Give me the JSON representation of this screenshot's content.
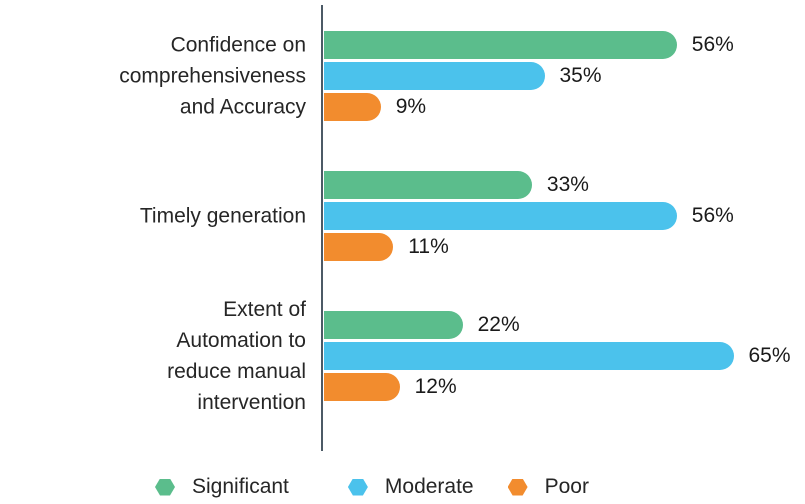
{
  "chart_data": {
    "type": "bar",
    "orientation": "horizontal",
    "categories": [
      {
        "label": "Confidence on comprehensiveness and Accuracy",
        "lines": [
          "Confidence on",
          "comprehensiveness",
          "and Accuracy"
        ]
      },
      {
        "label": "Timely generation",
        "lines": [
          "Timely generation"
        ]
      },
      {
        "label": "Extent of Automation to reduce manual intervention",
        "lines": [
          "Extent of",
          "Automation to",
          "reduce manual",
          "intervention"
        ]
      }
    ],
    "series": [
      {
        "name": "Significant",
        "color": "#5BBD8C",
        "values": [
          56,
          33,
          22
        ]
      },
      {
        "name": "Moderate",
        "color": "#4BC2EC",
        "values": [
          35,
          56,
          65
        ]
      },
      {
        "name": "Poor",
        "color": "#F28C2E",
        "values": [
          9,
          11,
          12
        ]
      }
    ],
    "value_suffix": "%",
    "grid": false,
    "legend_position": "bottom",
    "x_axis_ticks_visible": false,
    "y_axis_baseline_visible": true
  },
  "colors": {
    "axis_line": "#4C5A66",
    "label_text": "#262626",
    "value_text": "#1A1A1A",
    "background": "#FFFFFF"
  }
}
